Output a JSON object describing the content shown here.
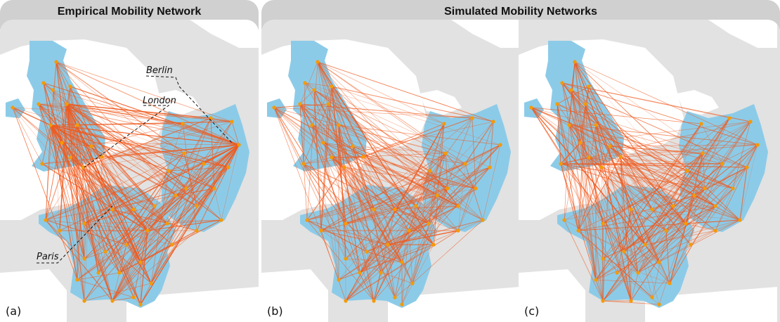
{
  "headers": {
    "empirical": "Empirical Mobility Network",
    "simulated": "Simulated Mobility Networks"
  },
  "panels": [
    {
      "label": "(a)"
    },
    {
      "label": "(b)"
    },
    {
      "label": "(c)"
    }
  ],
  "cities": {
    "berlin": "Berlin",
    "london": "London",
    "paris": "Paris"
  },
  "colors": {
    "land": "#e2e2e2",
    "sea": "#ffffff",
    "region": "#8ccbe8",
    "edge": "#f05a1e",
    "node": "#f59a00",
    "header": "#d0d0d0"
  }
}
